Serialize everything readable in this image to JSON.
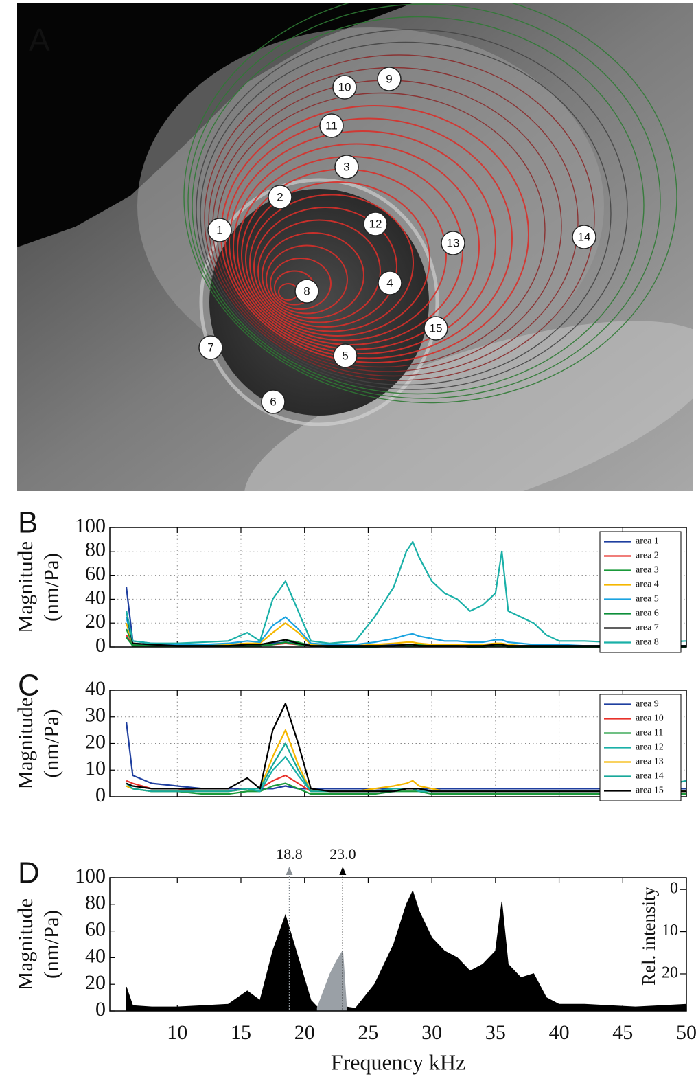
{
  "image": {
    "label": "A",
    "markers": [
      "1",
      "2",
      "3",
      "4",
      "5",
      "6",
      "7",
      "8",
      "9",
      "10",
      "11",
      "12",
      "13",
      "14",
      "15"
    ]
  },
  "chart_data": [
    {
      "type": "line",
      "label": "B",
      "ylabel": [
        "Magnitude",
        "(nm/Pa)"
      ],
      "x": [
        6,
        6.5,
        8,
        10,
        12,
        14,
        15.5,
        16.5,
        17.5,
        18.5,
        19.5,
        20.5,
        22,
        24,
        25.5,
        27,
        28,
        28.5,
        29,
        30,
        31,
        32,
        33,
        34,
        35,
        35.5,
        36,
        37,
        38,
        39,
        40,
        42,
        44,
        46,
        48,
        50
      ],
      "series": [
        {
          "name": "area 1",
          "color": "#1f3f9f",
          "values": [
            50,
            5,
            3,
            2,
            2,
            2,
            2,
            2,
            3,
            4,
            3,
            2,
            1,
            1,
            1,
            2,
            2,
            2,
            2,
            2,
            2,
            2,
            1,
            1,
            2,
            2,
            1,
            1,
            1,
            1,
            1,
            1,
            1,
            1,
            1,
            1
          ]
        },
        {
          "name": "area 2",
          "color": "#e8312a",
          "values": [
            10,
            1,
            1,
            1,
            1,
            1,
            1,
            1,
            2,
            3,
            2,
            1,
            0,
            0,
            0,
            1,
            1,
            1,
            1,
            1,
            1,
            1,
            0,
            0,
            1,
            1,
            0,
            0,
            0,
            0,
            0,
            0,
            0,
            0,
            0,
            0
          ]
        },
        {
          "name": "area 3",
          "color": "#1a9a3a",
          "values": [
            15,
            2,
            1,
            1,
            1,
            1,
            1,
            2,
            4,
            6,
            4,
            1,
            1,
            1,
            1,
            1,
            2,
            2,
            2,
            1,
            1,
            1,
            1,
            1,
            2,
            2,
            1,
            1,
            1,
            0,
            0,
            0,
            0,
            0,
            0,
            0
          ]
        },
        {
          "name": "area 4",
          "color": "#f5b700",
          "values": [
            20,
            3,
            2,
            2,
            2,
            2,
            3,
            3,
            12,
            20,
            12,
            2,
            1,
            1,
            2,
            3,
            4,
            4,
            3,
            2,
            2,
            2,
            2,
            2,
            3,
            3,
            2,
            1,
            1,
            1,
            1,
            1,
            1,
            1,
            1,
            1
          ]
        },
        {
          "name": "area 5",
          "color": "#1aa3e0",
          "values": [
            25,
            3,
            2,
            2,
            2,
            3,
            5,
            4,
            18,
            25,
            15,
            3,
            2,
            2,
            4,
            7,
            10,
            11,
            9,
            7,
            5,
            5,
            4,
            4,
            6,
            6,
            4,
            3,
            2,
            2,
            2,
            1,
            1,
            1,
            1,
            1
          ]
        },
        {
          "name": "area 6",
          "color": "#0d8f3a",
          "values": [
            8,
            1,
            1,
            1,
            1,
            1,
            1,
            1,
            2,
            4,
            2,
            1,
            0,
            0,
            0,
            1,
            1,
            1,
            1,
            1,
            1,
            1,
            0,
            0,
            1,
            1,
            0,
            0,
            0,
            0,
            0,
            0,
            0,
            0,
            0,
            0
          ]
        },
        {
          "name": "area 7",
          "color": "#000000",
          "values": [
            30,
            3,
            2,
            1,
            1,
            1,
            2,
            2,
            4,
            6,
            3,
            1,
            1,
            1,
            1,
            1,
            2,
            2,
            1,
            1,
            1,
            1,
            1,
            1,
            2,
            2,
            1,
            1,
            1,
            1,
            1,
            1,
            1,
            1,
            1,
            1
          ]
        },
        {
          "name": "area 8",
          "color": "#1ab0a8",
          "values": [
            30,
            5,
            3,
            3,
            4,
            5,
            12,
            5,
            40,
            55,
            30,
            5,
            3,
            5,
            25,
            50,
            80,
            88,
            75,
            55,
            45,
            40,
            30,
            35,
            45,
            80,
            30,
            25,
            20,
            10,
            5,
            5,
            4,
            3,
            4,
            5
          ]
        }
      ],
      "xlim": [
        4.7,
        50
      ],
      "ylim": [
        0,
        100
      ],
      "yticks": [
        0,
        20,
        40,
        60,
        80,
        100
      ],
      "xticks": [
        10,
        15,
        20,
        25,
        30,
        35,
        40,
        45,
        50
      ],
      "show_xtick_labels": false,
      "grid": true,
      "legend": "upper right"
    },
    {
      "type": "line",
      "label": "C",
      "ylabel": [
        "Magnitude",
        "(nm/Pa)"
      ],
      "x": [
        6,
        6.5,
        8,
        10,
        12,
        14,
        15.5,
        16.5,
        17.5,
        18.5,
        19.5,
        20.5,
        22,
        24,
        25.5,
        27,
        28,
        28.5,
        29,
        30,
        31,
        32,
        33,
        34,
        35,
        35.5,
        36,
        37,
        38,
        39,
        40,
        42,
        44,
        46,
        48,
        50
      ],
      "series": [
        {
          "name": "area 9",
          "color": "#1f3f9f",
          "values": [
            28,
            8,
            5,
            4,
            3,
            3,
            3,
            3,
            3,
            4,
            3,
            3,
            3,
            3,
            3,
            3,
            3,
            3,
            3,
            3,
            3,
            3,
            3,
            3,
            3,
            3,
            3,
            3,
            3,
            3,
            3,
            3,
            3,
            3,
            3,
            3
          ]
        },
        {
          "name": "area 10",
          "color": "#e8312a",
          "values": [
            6,
            5,
            3,
            3,
            2,
            2,
            3,
            3,
            6,
            8,
            5,
            2,
            2,
            2,
            2,
            2,
            3,
            3,
            2,
            2,
            2,
            2,
            2,
            2,
            2,
            2,
            2,
            2,
            2,
            2,
            2,
            2,
            2,
            2,
            2,
            2
          ]
        },
        {
          "name": "area 11",
          "color": "#1a9a3a",
          "values": [
            4,
            3,
            2,
            2,
            1,
            1,
            2,
            2,
            4,
            5,
            3,
            1,
            1,
            1,
            1,
            2,
            2,
            2,
            2,
            1,
            1,
            1,
            1,
            1,
            1,
            1,
            1,
            1,
            1,
            1,
            1,
            1,
            1,
            1,
            1,
            1
          ]
        },
        {
          "name": "area 12",
          "color": "#1ab0a8",
          "values": [
            5,
            3,
            2,
            2,
            2,
            2,
            3,
            2,
            10,
            15,
            8,
            2,
            2,
            2,
            2,
            2,
            3,
            3,
            2,
            2,
            2,
            2,
            2,
            2,
            2,
            2,
            2,
            2,
            2,
            2,
            2,
            2,
            2,
            2,
            2,
            2
          ]
        },
        {
          "name": "area 13",
          "color": "#f5b700",
          "values": [
            4,
            3,
            2,
            2,
            2,
            2,
            3,
            3,
            15,
            25,
            12,
            2,
            2,
            2,
            3,
            4,
            5,
            6,
            4,
            3,
            2,
            2,
            2,
            2,
            2,
            2,
            2,
            2,
            2,
            2,
            2,
            2,
            2,
            2,
            2,
            2
          ]
        },
        {
          "name": "area 14",
          "color": "#17a89a",
          "values": [
            5,
            3,
            2,
            2,
            2,
            2,
            3,
            3,
            12,
            20,
            10,
            2,
            2,
            2,
            2,
            3,
            3,
            3,
            3,
            2,
            2,
            2,
            2,
            2,
            2,
            2,
            2,
            2,
            2,
            2,
            2,
            2,
            2,
            3,
            4,
            6
          ]
        },
        {
          "name": "area 15",
          "color": "#000000",
          "values": [
            5,
            4,
            3,
            3,
            3,
            3,
            7,
            3,
            25,
            35,
            20,
            3,
            2,
            2,
            2,
            2,
            3,
            3,
            3,
            2,
            2,
            2,
            2,
            2,
            2,
            2,
            2,
            2,
            2,
            2,
            2,
            2,
            2,
            2,
            2,
            2
          ]
        }
      ],
      "xlim": [
        4.7,
        50
      ],
      "ylim": [
        0,
        40
      ],
      "yticks": [
        0,
        10,
        20,
        30,
        40
      ],
      "xticks": [
        10,
        15,
        20,
        25,
        30,
        35,
        40,
        45,
        50
      ],
      "show_xtick_labels": false,
      "grid": true,
      "legend": "upper right"
    },
    {
      "type": "area",
      "label": "D",
      "ylabel": [
        "Magnitude",
        "(nm/Pa)"
      ],
      "xlabel": "Frequency kHz",
      "y2label": "Rel. intensity",
      "x": [
        6,
        6.5,
        8,
        10,
        12,
        14,
        15.5,
        16.5,
        17.5,
        18.5,
        19.5,
        20.5,
        21,
        21.5,
        22,
        22.5,
        23,
        23.3,
        24,
        25.5,
        27,
        28,
        28.5,
        29,
        30,
        31,
        32,
        33,
        34,
        35,
        35.5,
        36,
        37,
        38,
        39,
        40,
        42,
        44,
        46,
        48,
        50
      ],
      "series": [
        {
          "color": "#000000",
          "values": [
            18,
            4,
            3,
            3,
            4,
            5,
            15,
            8,
            45,
            72,
            40,
            8,
            3,
            3,
            3,
            3,
            3,
            3,
            2,
            20,
            50,
            80,
            90,
            75,
            55,
            45,
            40,
            30,
            35,
            45,
            82,
            35,
            25,
            28,
            10,
            5,
            5,
            4,
            3,
            4,
            5
          ]
        },
        {
          "color": "#9aa0a6",
          "axis": "y2",
          "values": [
            null,
            null,
            null,
            null,
            null,
            null,
            null,
            null,
            null,
            null,
            null,
            null,
            28,
            24,
            20,
            17,
            14.5,
            28,
            null,
            null,
            null,
            null,
            null,
            null,
            null,
            null,
            null,
            null,
            null,
            null,
            null,
            null,
            null,
            null,
            null,
            null,
            null,
            null,
            null,
            null,
            null
          ]
        }
      ],
      "xlim": [
        4.7,
        50
      ],
      "ylim": [
        0,
        100
      ],
      "yticks": [
        0,
        20,
        40,
        60,
        80,
        100
      ],
      "xticks": [
        10,
        15,
        20,
        25,
        30,
        35,
        40,
        45,
        50
      ],
      "show_xtick_labels": true,
      "grid": false,
      "y2lim": [
        28.8,
        -2.8
      ],
      "y2ticks": [
        0,
        10,
        20
      ],
      "annotations": [
        {
          "value": 18.8,
          "label": "18.8",
          "color": "#8a9096"
        },
        {
          "value": 23,
          "label": "23.0",
          "color": "#000000"
        }
      ]
    }
  ]
}
